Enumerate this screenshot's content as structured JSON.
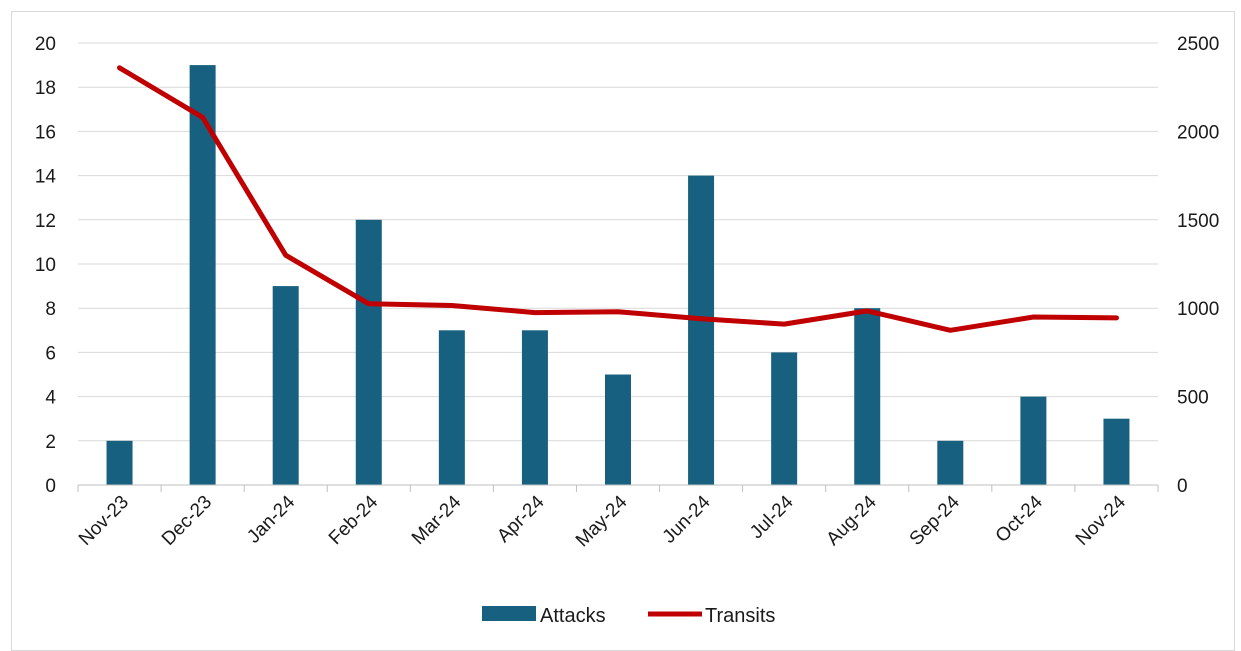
{
  "chart_data": {
    "type": "bar",
    "title": "",
    "xlabel": "",
    "ylabel": "",
    "y2label": "",
    "categories": [
      "Nov-23",
      "Dec-23",
      "Jan-24",
      "Feb-24",
      "Mar-24",
      "Apr-24",
      "May-24",
      "Jun-24",
      "Jul-24",
      "Aug-24",
      "Sep-24",
      "Oct-24",
      "Nov-24"
    ],
    "series": [
      {
        "name": "Attacks",
        "type": "bar",
        "axis": "left",
        "color": "#17607f",
        "values": [
          2,
          19,
          9,
          12,
          7,
          7,
          5,
          14,
          6,
          8,
          2,
          4,
          3
        ]
      },
      {
        "name": "Transits",
        "type": "line",
        "axis": "right",
        "color": "#c00000",
        "values": [
          2360,
          2080,
          1300,
          1025,
          1015,
          975,
          980,
          940,
          910,
          985,
          875,
          950,
          945
        ]
      }
    ],
    "ylim": [
      0,
      20
    ],
    "y_ticks": [
      "0",
      "2",
      "4",
      "6",
      "8",
      "10",
      "12",
      "14",
      "16",
      "18",
      "20"
    ],
    "y2lim": [
      0,
      2500
    ],
    "y2_ticks": [
      "0",
      "500",
      "1000",
      "1500",
      "2000",
      "2500"
    ],
    "grid": true,
    "legend_position": "bottom"
  }
}
